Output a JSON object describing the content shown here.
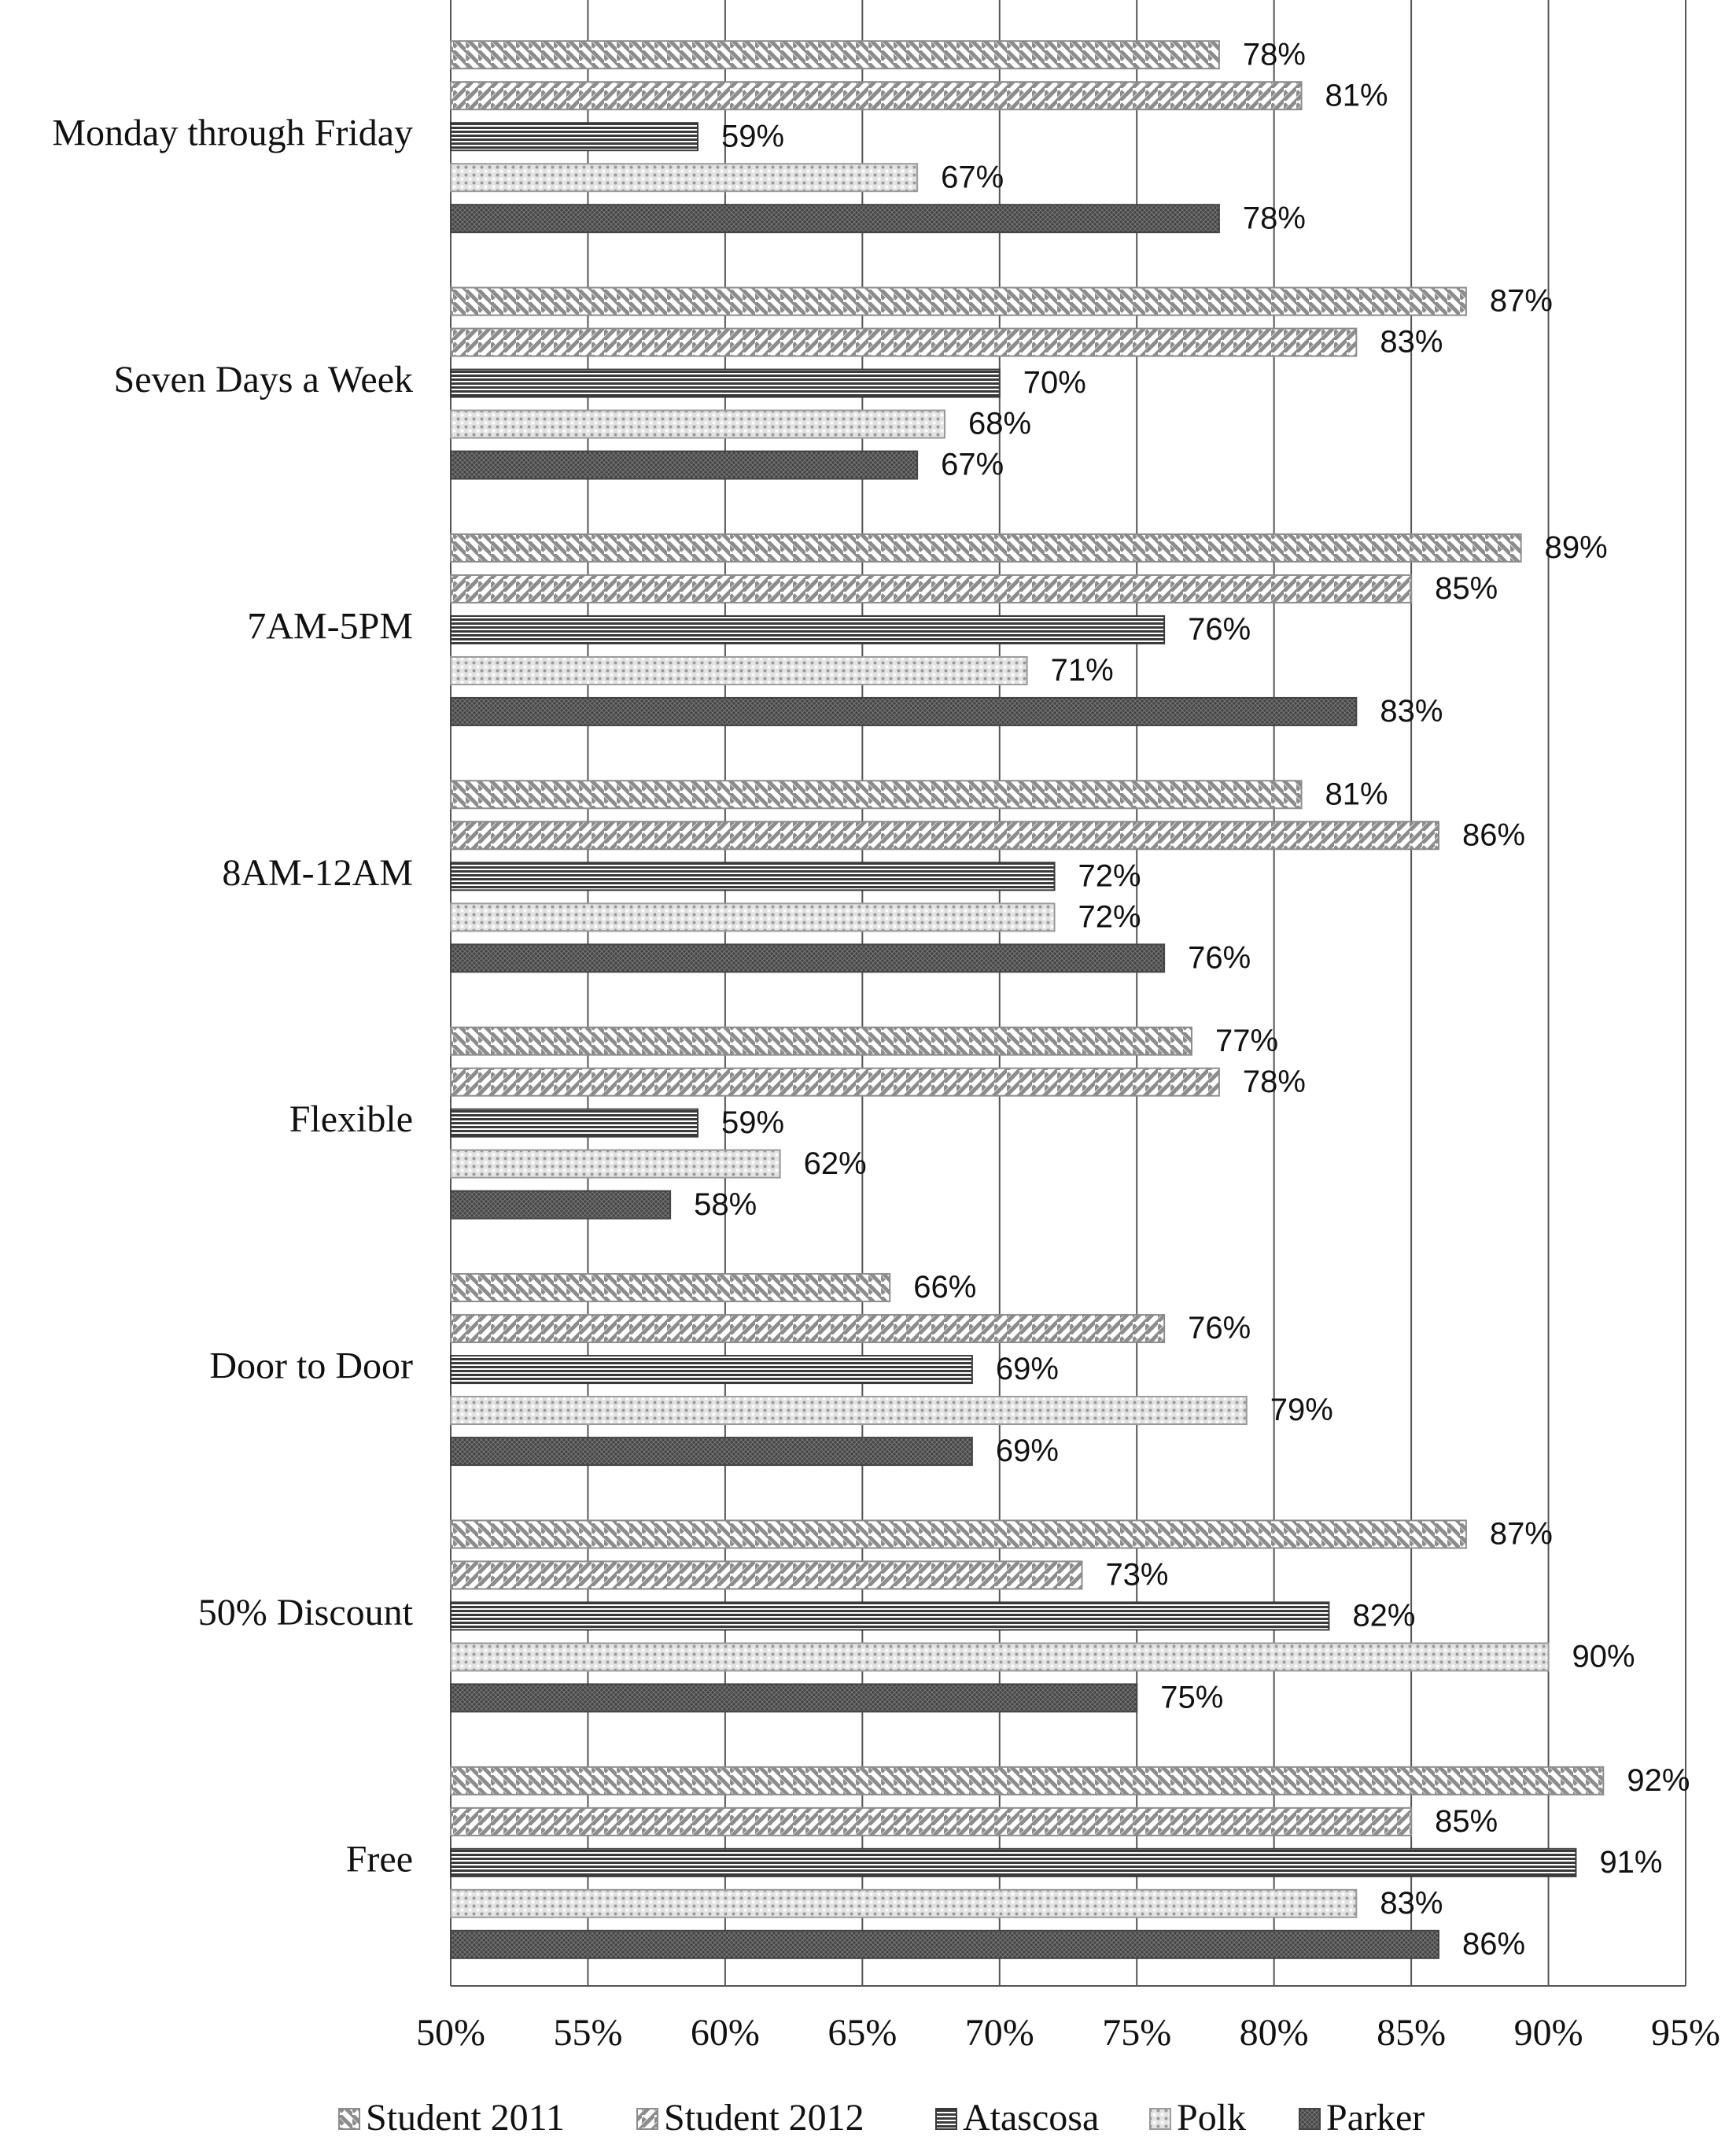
{
  "chart_data": {
    "type": "bar",
    "orientation": "horizontal",
    "categories": [
      "Monday through Friday",
      "Seven Days a Week",
      "7AM-5PM",
      "8AM-12AM",
      "Flexible",
      "Door to Door",
      "50% Discount",
      "Free"
    ],
    "series": [
      {
        "name": "Student 2011",
        "color": "#8c8c8c",
        "pattern": "diagonal-back",
        "values": [
          78,
          87,
          89,
          81,
          77,
          66,
          87,
          92
        ],
        "value_labels": [
          "78%",
          "87%",
          "89%",
          "81%",
          "77%",
          "66%",
          "87%",
          "92%"
        ]
      },
      {
        "name": "Student 2012",
        "color": "#8c8c8c",
        "pattern": "diagonal-forward",
        "values": [
          81,
          83,
          85,
          86,
          78,
          76,
          73,
          85
        ],
        "value_labels": [
          "81%",
          "83%",
          "85%",
          "86%",
          "78%",
          "76%",
          "73%",
          "85%"
        ]
      },
      {
        "name": "Atascosa",
        "color": "#3a3a3a",
        "pattern": "horizontal",
        "values": [
          59,
          70,
          76,
          72,
          59,
          69,
          82,
          91
        ],
        "value_labels": [
          "59%",
          "70%",
          "76%",
          "72%",
          "59%",
          "69%",
          "82%",
          "91%"
        ]
      },
      {
        "name": "Polk",
        "color": "#9a9a9a",
        "pattern": "dots",
        "values": [
          67,
          68,
          71,
          72,
          62,
          79,
          90,
          83
        ],
        "value_labels": [
          "67%",
          "68%",
          "71%",
          "72%",
          "62%",
          "79%",
          "90%",
          "83%"
        ]
      },
      {
        "name": "Parker",
        "color": "#444444",
        "pattern": "crosshatch",
        "values": [
          78,
          67,
          83,
          76,
          58,
          69,
          75,
          86
        ],
        "value_labels": [
          "78%",
          "67%",
          "83%",
          "76%",
          "58%",
          "69%",
          "75%",
          "86%"
        ]
      }
    ],
    "xlim": [
      50,
      95
    ],
    "xticks": [
      {
        "value": 50,
        "label": "50%"
      },
      {
        "value": 55,
        "label": "55%"
      },
      {
        "value": 60,
        "label": "60%"
      },
      {
        "value": 65,
        "label": "65%"
      },
      {
        "value": 70,
        "label": "70%"
      },
      {
        "value": 75,
        "label": "75%"
      },
      {
        "value": 80,
        "label": "80%"
      },
      {
        "value": 85,
        "label": "85%"
      },
      {
        "value": 90,
        "label": "90%"
      },
      {
        "value": 95,
        "label": "95%"
      }
    ],
    "grid": true,
    "legend": "bottom"
  }
}
